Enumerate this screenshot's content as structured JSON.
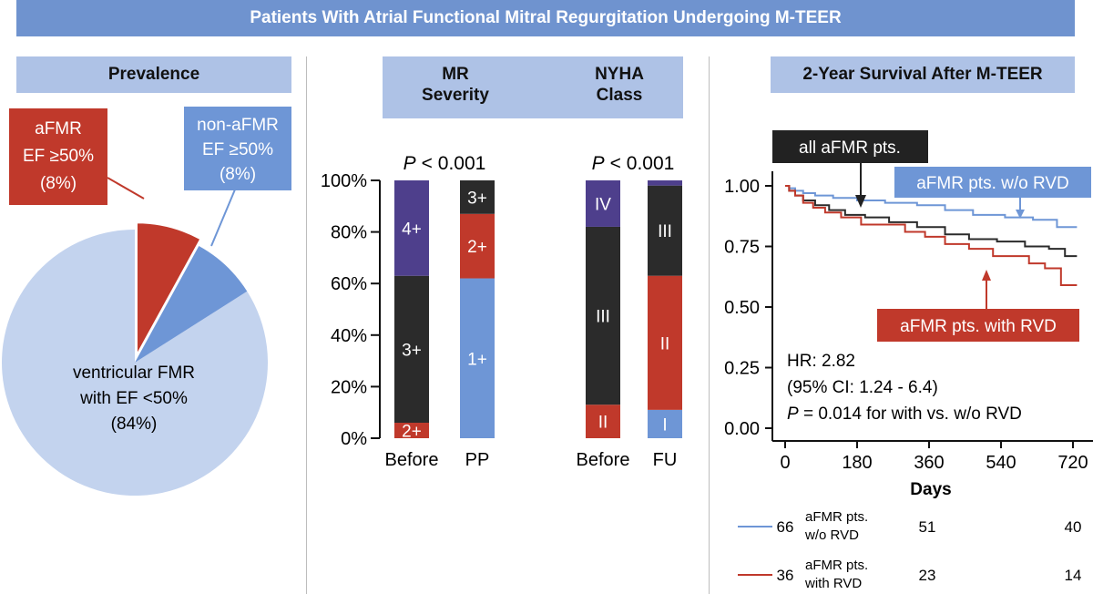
{
  "title": "Patients With Atrial Functional Mitral Regurgitation Undergoing M-TEER",
  "colors": {
    "title_bg": "#6f93cf",
    "section_bg": "#aec2e6",
    "red": "#c0392b",
    "blue": "#6e96d6",
    "lightblue": "#c3d3ee",
    "purple": "#4e3f8c",
    "dark": "#2b2b2b"
  },
  "prevalence": {
    "header": "Prevalence",
    "callout_afmr": [
      "aFMR",
      "EF ≥50%",
      "(8%)"
    ],
    "callout_nonafmr": [
      "non-aFMR",
      "EF ≥50%",
      "(8%)"
    ],
    "label_vfmr": [
      "ventricular FMR",
      "with EF <50%",
      "(84%)"
    ]
  },
  "severity": {
    "header_mr": [
      "MR",
      "Severity"
    ],
    "header_nyha": [
      "NYHA",
      "Class"
    ],
    "p_mr": "< 0.001",
    "p_nyha": "< 0.001",
    "p_letter": "P"
  },
  "survival": {
    "header": "2-Year Survival After M-TEER",
    "label_all": "all aFMR pts.",
    "label_norvd": "aFMR pts. w/o RVD",
    "label_rvd": "aFMR pts. with RVD",
    "hr": "HR: 2.82",
    "ci": "(95% CI: 1.24 - 6.4)",
    "p_letter": "P",
    "p_text": " = 0.014 for with vs. w/o RVD",
    "xlabel": "Days",
    "risk_table": [
      {
        "start": "66",
        "name": [
          "aFMR pts.",
          "w/o RVD"
        ],
        "mid": "51",
        "end": "40",
        "color": "#6e96d6"
      },
      {
        "start": "36",
        "name": [
          "aFMR pts.",
          "with RVD"
        ],
        "mid": "23",
        "end": "14",
        "color": "#c0392b"
      }
    ]
  },
  "chart_data": [
    {
      "type": "pie",
      "title": "Prevalence",
      "slices": [
        {
          "label": "aFMR EF ≥50%",
          "value": 8,
          "color": "#c0392b",
          "exploded": true
        },
        {
          "label": "non-aFMR EF ≥50%",
          "value": 8,
          "color": "#6e96d6"
        },
        {
          "label": "ventricular FMR with EF <50%",
          "value": 84,
          "color": "#c3d3ee"
        }
      ]
    },
    {
      "type": "bar",
      "stacked": true,
      "title": "MR Severity / NYHA Class",
      "ylim": [
        0,
        100
      ],
      "yticks": [
        0,
        20,
        40,
        60,
        80,
        100
      ],
      "ytick_suffix": "%",
      "bars": [
        {
          "category": "Before",
          "group": "MR",
          "segments": [
            {
              "label": "2+",
              "value": 6,
              "color": "#c0392b"
            },
            {
              "label": "3+",
              "value": 57,
              "color": "#2b2b2b"
            },
            {
              "label": "4+",
              "value": 37,
              "color": "#4e3f8c"
            }
          ]
        },
        {
          "category": "PP",
          "group": "MR",
          "segments": [
            {
              "label": "1+",
              "value": 62,
              "color": "#6e96d6"
            },
            {
              "label": "2+",
              "value": 25,
              "color": "#c0392b"
            },
            {
              "label": "3+",
              "value": 13,
              "color": "#2b2b2b"
            }
          ]
        },
        {
          "category": "Before",
          "group": "NYHA",
          "segments": [
            {
              "label": "II",
              "value": 13,
              "color": "#c0392b"
            },
            {
              "label": "III",
              "value": 69,
              "color": "#2b2b2b"
            },
            {
              "label": "IV",
              "value": 18,
              "color": "#4e3f8c"
            }
          ]
        },
        {
          "category": "FU",
          "group": "NYHA",
          "segments": [
            {
              "label": "I",
              "value": 11,
              "color": "#6e96d6"
            },
            {
              "label": "II",
              "value": 52,
              "color": "#c0392b"
            },
            {
              "label": "III",
              "value": 35,
              "color": "#2b2b2b"
            },
            {
              "label": "",
              "value": 2,
              "color": "#4e3f8c"
            }
          ]
        }
      ]
    },
    {
      "type": "line",
      "title": "2-Year Survival After M-TEER",
      "xlabel": "Days",
      "xlim": [
        0,
        730
      ],
      "ylim": [
        0,
        1.05
      ],
      "xticks": [
        0,
        180,
        360,
        540,
        720
      ],
      "yticks": [
        "0.00",
        "0.25",
        "0.50",
        "0.75",
        "1.00"
      ],
      "series": [
        {
          "name": "aFMR pts. w/o RVD",
          "color": "#6e96d6",
          "x": [
            0,
            10,
            25,
            45,
            75,
            120,
            180,
            250,
            330,
            400,
            470,
            550,
            620,
            680,
            730
          ],
          "y": [
            1.0,
            0.99,
            0.98,
            0.97,
            0.96,
            0.95,
            0.94,
            0.93,
            0.92,
            0.9,
            0.88,
            0.87,
            0.86,
            0.83,
            0.83
          ]
        },
        {
          "name": "all aFMR pts.",
          "color": "#2b2b2b",
          "x": [
            0,
            10,
            25,
            45,
            75,
            110,
            150,
            200,
            260,
            330,
            400,
            460,
            530,
            600,
            660,
            700,
            730
          ],
          "y": [
            1.0,
            0.98,
            0.96,
            0.94,
            0.92,
            0.9,
            0.88,
            0.87,
            0.85,
            0.83,
            0.8,
            0.78,
            0.77,
            0.75,
            0.74,
            0.71,
            0.71
          ]
        },
        {
          "name": "aFMR pts. with RVD",
          "color": "#c0392b",
          "x": [
            0,
            10,
            25,
            45,
            70,
            100,
            140,
            190,
            240,
            300,
            350,
            400,
            460,
            520,
            560,
            610,
            650,
            690,
            730
          ],
          "y": [
            1.0,
            0.98,
            0.96,
            0.93,
            0.91,
            0.89,
            0.87,
            0.84,
            0.84,
            0.81,
            0.79,
            0.76,
            0.74,
            0.71,
            0.71,
            0.68,
            0.66,
            0.59,
            0.59
          ]
        }
      ]
    }
  ]
}
